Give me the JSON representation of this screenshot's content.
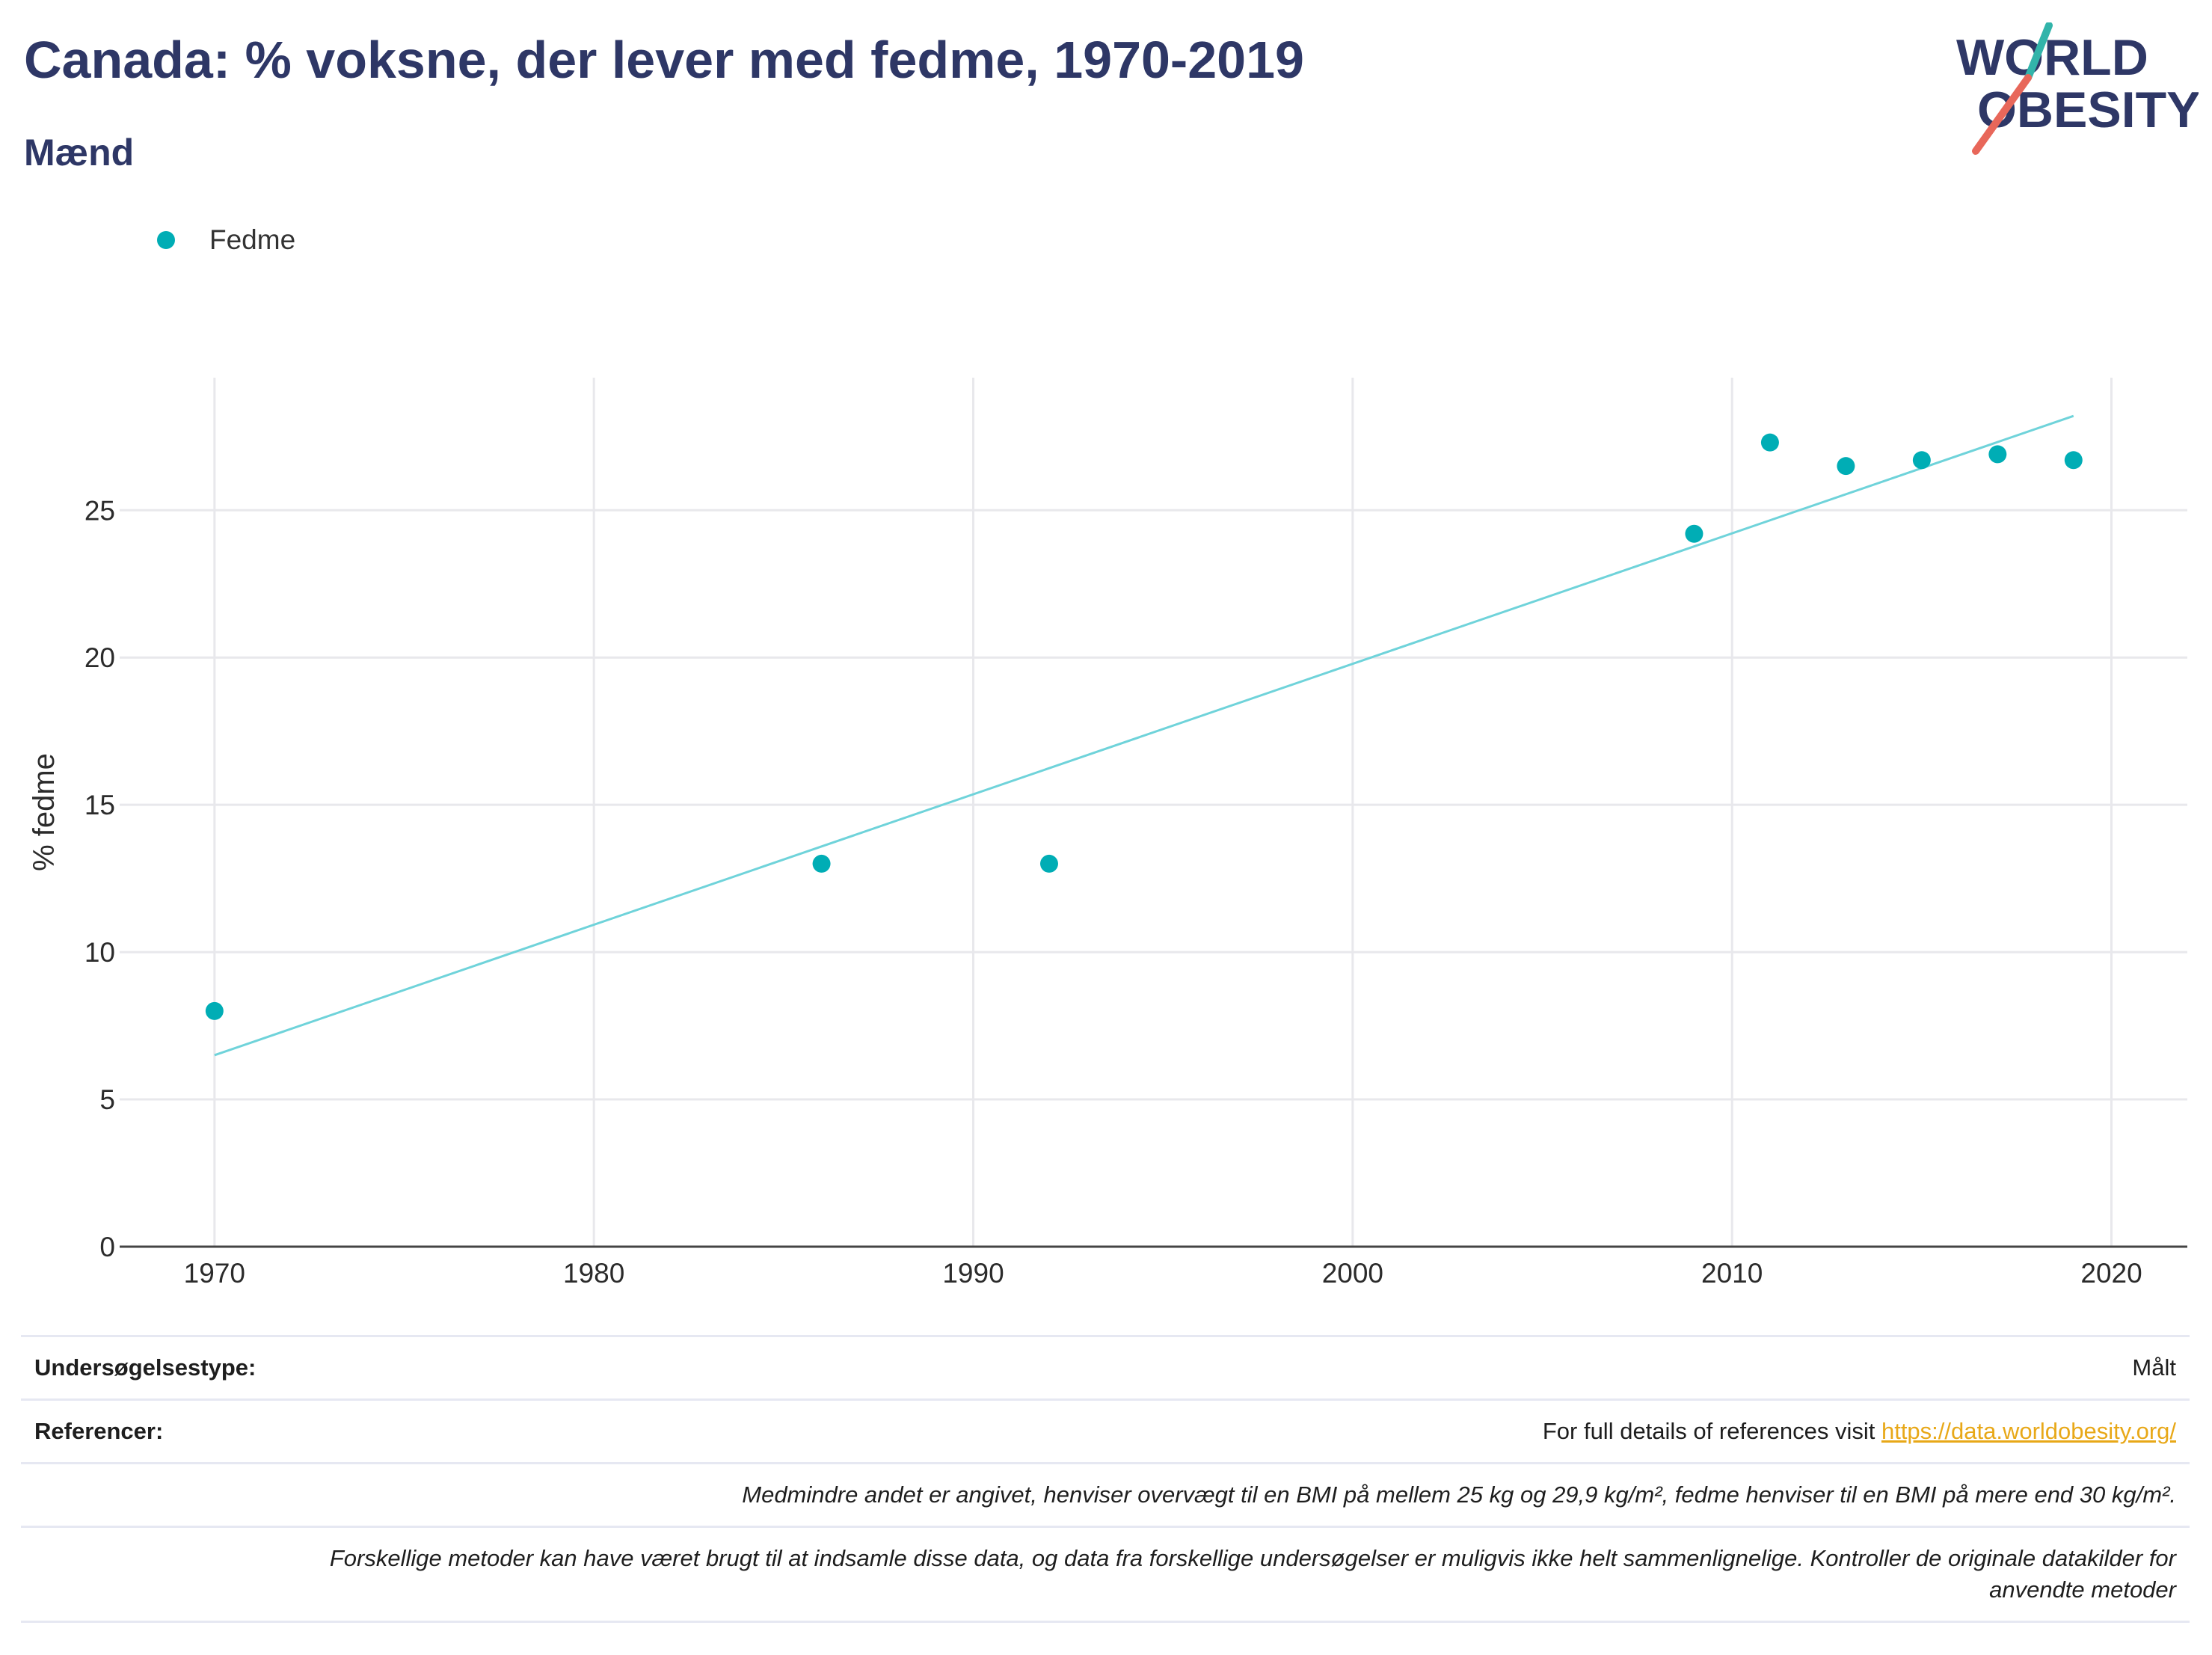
{
  "title": "Canada: % voksne, der lever med fedme, 1970-2019",
  "subtitle": "Mænd",
  "logo": {
    "line1": "WORLD",
    "line2": "OBESITY"
  },
  "colors": {
    "title": "#2e3766",
    "point": "#00adb5",
    "trend": "#6fd3da",
    "grid": "#e8e8ec",
    "axis": "#444444",
    "link": "#e8a818",
    "logo_teal": "#32b4aa",
    "logo_red": "#e8675a"
  },
  "chart_data": {
    "type": "scatter",
    "xlabel": "",
    "ylabel": "% fedme",
    "xlim": [
      1967.5,
      2022
    ],
    "ylim": [
      0,
      29.5
    ],
    "x_ticks": [
      1970,
      1980,
      1990,
      2000,
      2010,
      2020
    ],
    "y_ticks": [
      0,
      5,
      10,
      15,
      20,
      25
    ],
    "grid": true,
    "legend": "top-left",
    "series": [
      {
        "name": "Fedme",
        "points": [
          {
            "x": 1970,
            "y": 8.0
          },
          {
            "x": 1986,
            "y": 13.0
          },
          {
            "x": 1992,
            "y": 13.0
          },
          {
            "x": 2009,
            "y": 24.2
          },
          {
            "x": 2011,
            "y": 27.3
          },
          {
            "x": 2013,
            "y": 26.5
          },
          {
            "x": 2015,
            "y": 26.7
          },
          {
            "x": 2017,
            "y": 26.9
          },
          {
            "x": 2019,
            "y": 26.7
          }
        ]
      }
    ],
    "trendline": {
      "start": {
        "x": 1970,
        "y": 6.5
      },
      "end": {
        "x": 2019,
        "y": 28.2
      }
    }
  },
  "footer": {
    "survey_label": "Undersøgelsestype:",
    "survey_value": "Målt",
    "refs_label": "Referencer:",
    "refs_text": "For full details of references visit ",
    "refs_link": "https://data.worldobesity.org/",
    "note1": "Medmindre andet er angivet, henviser overvægt til en BMI på mellem 25 kg og 29,9 kg/m², fedme henviser til en BMI på mere end 30 kg/m².",
    "note2_line1": "Forskellige metoder kan have været brugt til at indsamle disse data, og data fra forskellige undersøgelser er muligvis ikke helt sammenlignelige. Kontroller de originale datakilder for",
    "note2_line2": "anvendte metoder"
  }
}
